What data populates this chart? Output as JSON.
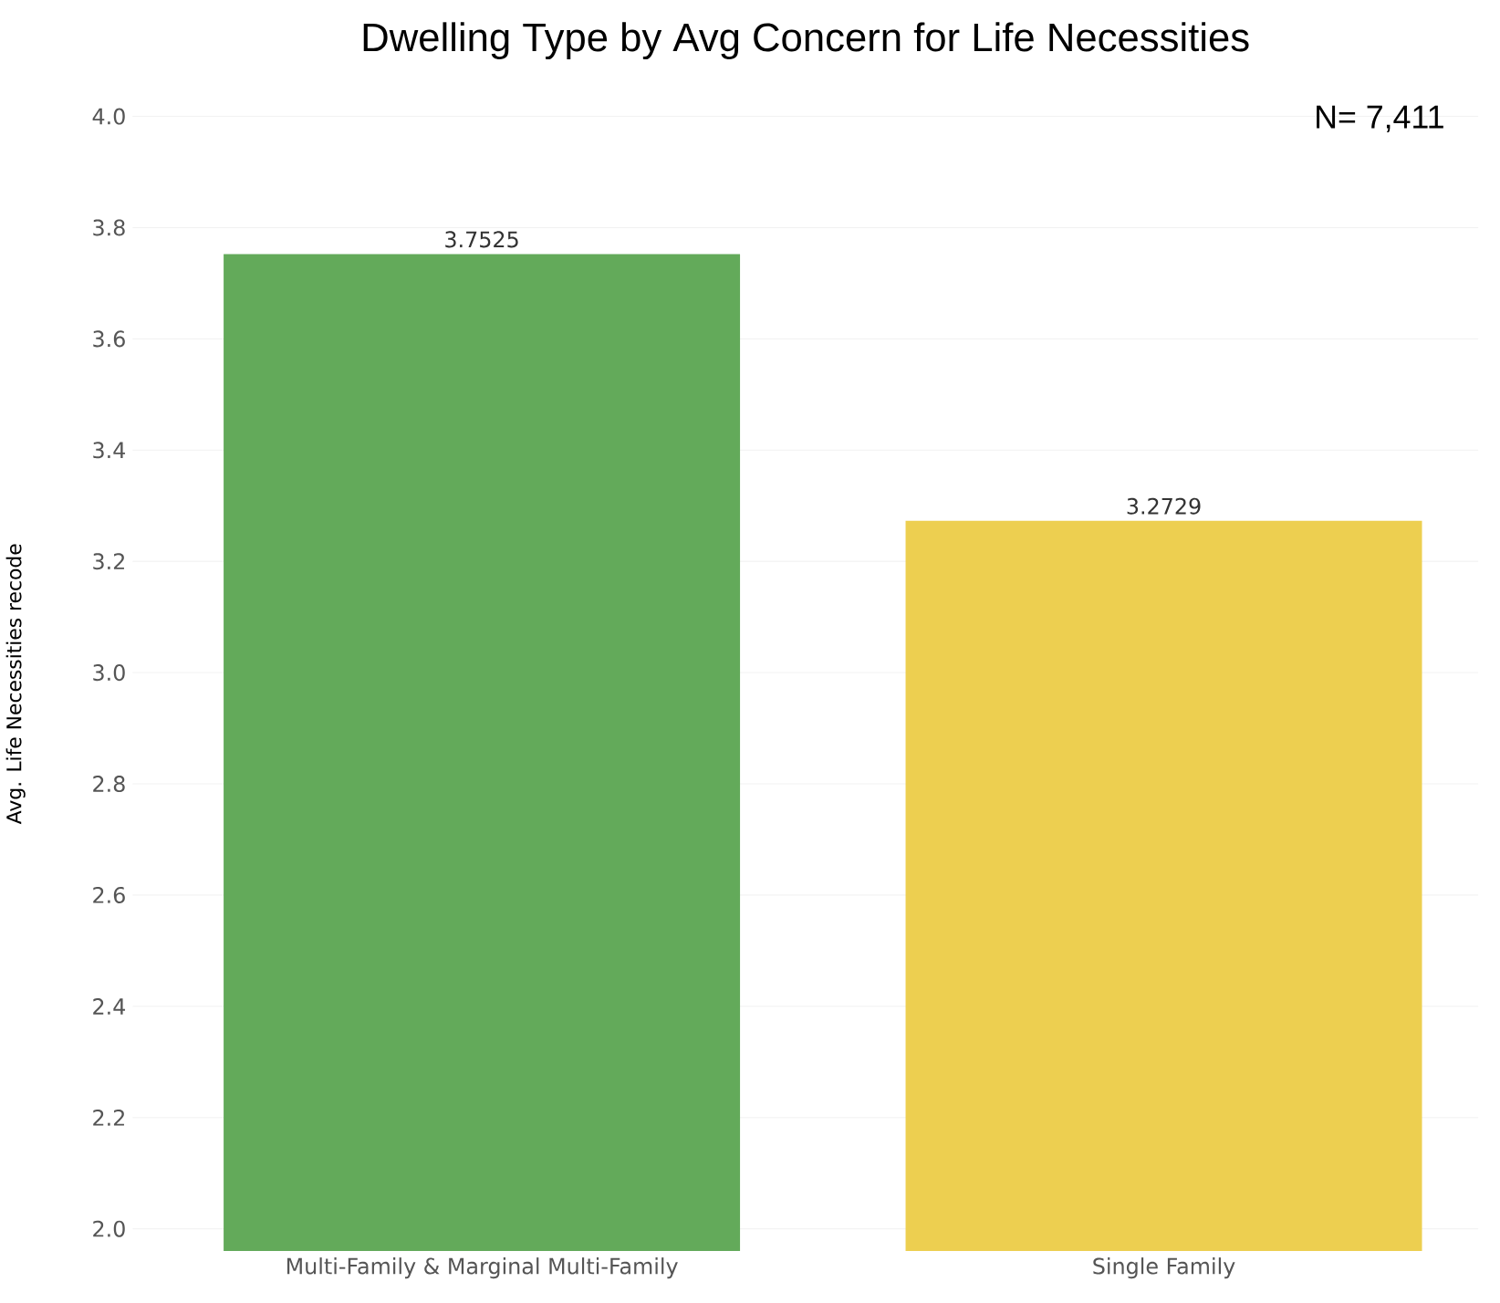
{
  "chart_data": {
    "type": "bar",
    "title": "Dwelling Type by Avg Concern for Life Necessities",
    "ylabel": "Avg. Life Necessities recode",
    "categories": [
      "Multi-Family & Marginal Multi-Family",
      "Single Family"
    ],
    "values": [
      3.7525,
      3.2729
    ],
    "colors": [
      "#63aa5a",
      "#edcf50"
    ],
    "ylim": [
      1.96,
      4.0
    ],
    "yticks": [
      {
        "value": 2,
        "label": "2.0"
      },
      2.2,
      2.4,
      2.6,
      2.8,
      {
        "value": 3,
        "label": "3.0"
      },
      3.2,
      3.4,
      3.6,
      3.8,
      {
        "value": 4,
        "label": "4.0"
      }
    ],
    "grid": "y",
    "data_labels": true,
    "annotations": [
      "N= 7,411"
    ]
  }
}
